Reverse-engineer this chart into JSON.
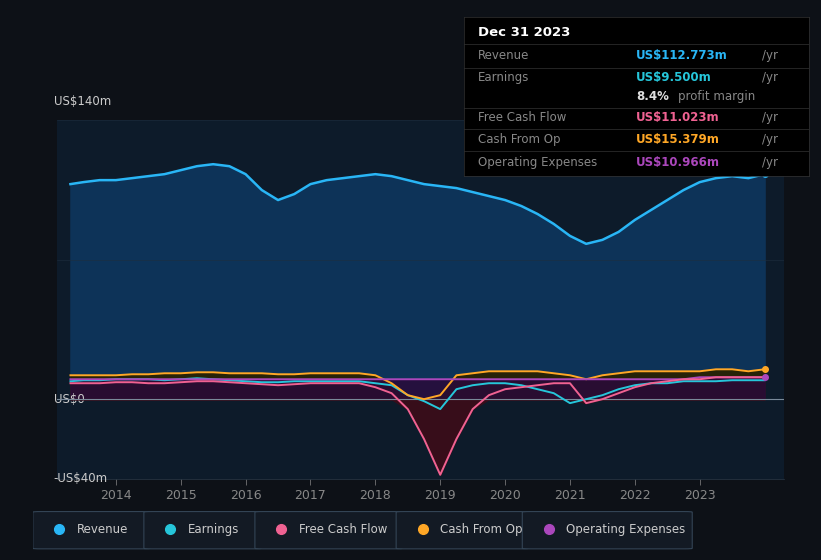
{
  "background_color": "#0d1117",
  "plot_bg_color": "#0d1b2a",
  "ylabel": "US$140m",
  "ylabel_zero": "US$0",
  "ylabel_neg": "-US$40m",
  "years_ticks": [
    2014,
    2015,
    2016,
    2017,
    2018,
    2019,
    2020,
    2021,
    2022,
    2023
  ],
  "revenue_color": "#29b6f6",
  "earnings_color": "#26c6da",
  "fcf_color": "#f06292",
  "cashfromop_color": "#ffa726",
  "opex_color": "#ab47bc",
  "info_box": {
    "title": "Dec 31 2023",
    "revenue_label": "Revenue",
    "revenue_value": "US$112.773m",
    "revenue_color": "#29b6f6",
    "earnings_label": "Earnings",
    "earnings_value": "US$9.500m",
    "earnings_color": "#26c6da",
    "margin_value": "8.4%",
    "margin_suffix": "profit margin",
    "fcf_label": "Free Cash Flow",
    "fcf_value": "US$11.023m",
    "fcf_color": "#f06292",
    "cashfromop_label": "Cash From Op",
    "cashfromop_value": "US$15.379m",
    "cashfromop_color": "#ffa726",
    "opex_label": "Operating Expenses",
    "opex_value": "US$10.966m",
    "opex_color": "#ab47bc"
  },
  "xmin": 2013.1,
  "xmax": 2024.3,
  "ymin": -40,
  "ymax": 140,
  "legend": [
    {
      "label": "Revenue",
      "color": "#29b6f6"
    },
    {
      "label": "Earnings",
      "color": "#26c6da"
    },
    {
      "label": "Free Cash Flow",
      "color": "#f06292"
    },
    {
      "label": "Cash From Op",
      "color": "#ffa726"
    },
    {
      "label": "Operating Expenses",
      "color": "#ab47bc"
    }
  ],
  "x_years": [
    2013.3,
    2013.5,
    2013.75,
    2014.0,
    2014.25,
    2014.5,
    2014.75,
    2015.0,
    2015.25,
    2015.5,
    2015.75,
    2016.0,
    2016.25,
    2016.5,
    2016.75,
    2017.0,
    2017.25,
    2017.5,
    2017.75,
    2018.0,
    2018.25,
    2018.5,
    2018.75,
    2019.0,
    2019.25,
    2019.5,
    2019.75,
    2020.0,
    2020.25,
    2020.5,
    2020.75,
    2021.0,
    2021.25,
    2021.5,
    2021.75,
    2022.0,
    2022.25,
    2022.5,
    2022.75,
    2023.0,
    2023.25,
    2023.5,
    2023.75,
    2024.0
  ],
  "revenue": [
    108,
    109,
    110,
    110,
    111,
    112,
    113,
    115,
    117,
    118,
    117,
    113,
    105,
    100,
    103,
    108,
    110,
    111,
    112,
    113,
    112,
    110,
    108,
    107,
    106,
    104,
    102,
    100,
    97,
    93,
    88,
    82,
    78,
    80,
    84,
    90,
    95,
    100,
    105,
    109,
    111,
    112,
    111,
    113
  ],
  "earnings": [
    9,
    9.5,
    9.5,
    10,
    10,
    10,
    9.5,
    10,
    10.5,
    10,
    9.5,
    9,
    8.5,
    8.5,
    9,
    9,
    9,
    9,
    9,
    8,
    7,
    2,
    -1,
    -5,
    5,
    7,
    8,
    8,
    7,
    5,
    3,
    -2,
    0,
    2,
    5,
    7,
    8,
    8,
    9,
    9,
    9,
    9.5,
    9.5,
    9.5
  ],
  "fcf": [
    8,
    8,
    8,
    8.5,
    8.5,
    8,
    8,
    8.5,
    9,
    9,
    8.5,
    8,
    7.5,
    7,
    7.5,
    8,
    8,
    8,
    8,
    6,
    3,
    -5,
    -20,
    -38,
    -20,
    -5,
    2,
    5,
    6,
    7,
    8,
    8,
    -2,
    0,
    3,
    6,
    8,
    9,
    10,
    10,
    11,
    11,
    11,
    11
  ],
  "cashfromop": [
    12,
    12,
    12,
    12,
    12.5,
    12.5,
    13,
    13,
    13.5,
    13.5,
    13,
    13,
    13,
    12.5,
    12.5,
    13,
    13,
    13,
    13,
    12,
    8,
    2,
    0,
    2,
    12,
    13,
    14,
    14,
    14,
    14,
    13,
    12,
    10,
    12,
    13,
    14,
    14,
    14,
    14,
    14,
    15,
    15,
    14,
    15
  ],
  "opex": [
    10,
    10,
    10,
    10,
    10,
    10,
    10,
    10,
    10,
    10,
    10,
    10,
    10,
    10,
    10,
    10,
    10,
    10,
    10,
    10,
    10,
    10,
    10,
    10,
    10,
    10,
    10,
    10,
    10,
    10,
    10,
    10,
    10,
    10,
    10,
    10,
    10,
    10,
    10,
    11,
    11,
    11,
    11,
    11
  ]
}
